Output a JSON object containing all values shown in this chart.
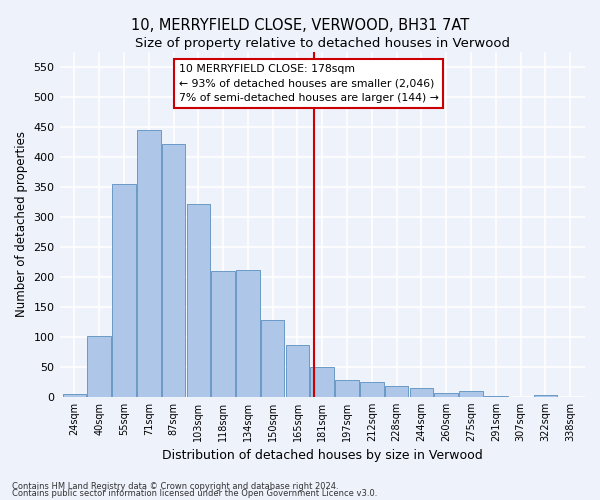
{
  "title": "10, MERRYFIELD CLOSE, VERWOOD, BH31 7AT",
  "subtitle": "Size of property relative to detached houses in Verwood",
  "xlabel": "Distribution of detached houses by size in Verwood",
  "ylabel": "Number of detached properties",
  "footnote1": "Contains HM Land Registry data © Crown copyright and database right 2024.",
  "footnote2": "Contains public sector information licensed under the Open Government Licence v3.0.",
  "categories": [
    "24sqm",
    "40sqm",
    "55sqm",
    "71sqm",
    "87sqm",
    "103sqm",
    "118sqm",
    "134sqm",
    "150sqm",
    "165sqm",
    "181sqm",
    "197sqm",
    "212sqm",
    "228sqm",
    "244sqm",
    "260sqm",
    "275sqm",
    "291sqm",
    "307sqm",
    "322sqm",
    "338sqm"
  ],
  "values": [
    5,
    101,
    354,
    444,
    421,
    321,
    210,
    211,
    128,
    86,
    50,
    28,
    25,
    18,
    14,
    7,
    10,
    2,
    0,
    3,
    0
  ],
  "bar_color": "#aec6e8",
  "bar_edge_color": "#5a8fc0",
  "vline_x_index": 9.65,
  "vline_color": "#cc0000",
  "annotation_title": "10 MERRYFIELD CLOSE: 178sqm",
  "annotation_line1": "← 93% of detached houses are smaller (2,046)",
  "annotation_line2": "7% of semi-detached houses are larger (144) →",
  "annotation_box_color": "#cc0000",
  "annotation_bg": "#ffffff",
  "ylim": [
    0,
    575
  ],
  "yticks": [
    0,
    50,
    100,
    150,
    200,
    250,
    300,
    350,
    400,
    450,
    500,
    550
  ],
  "bg_color": "#eef2fb",
  "plot_bg": "#eef2fb",
  "grid_color": "#ffffff",
  "title_fontsize": 10.5,
  "subtitle_fontsize": 9.5,
  "xlabel_fontsize": 9,
  "ylabel_fontsize": 8.5
}
